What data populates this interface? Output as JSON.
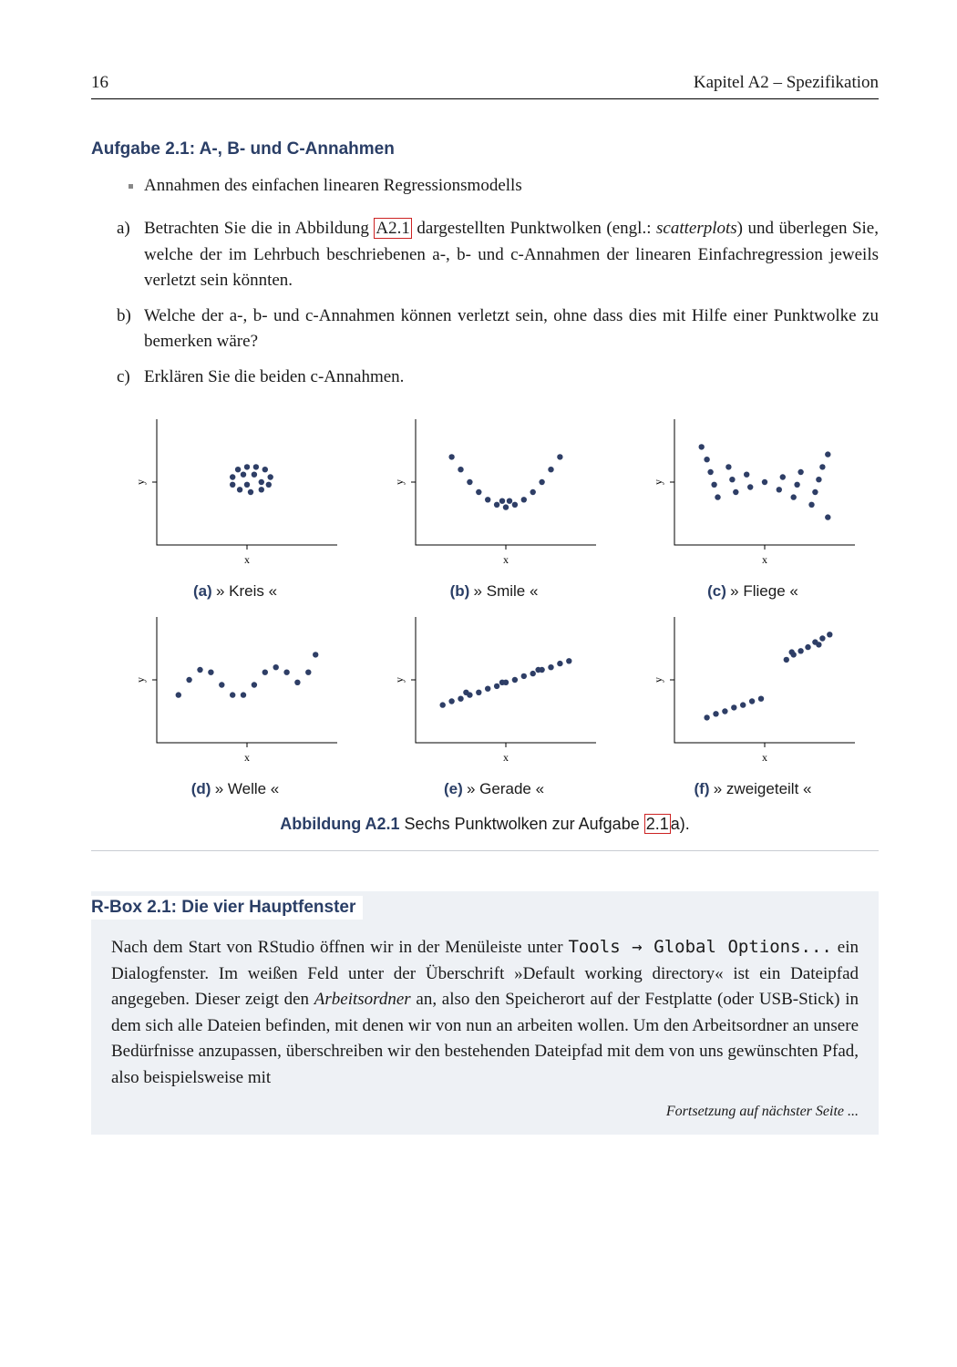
{
  "header": {
    "pageno": "16",
    "chapter": "Kapitel A2 – Spezifikation"
  },
  "aufgabe": {
    "title": "Aufgabe 2.1: A-, B- und C-Annahmen",
    "bullet": "Annahmen des einfachen linearen Regressionsmodells",
    "item_a_before": "Betrachten Sie die in Abbildung ",
    "item_a_link": "A2.1",
    "item_a_mid1": " dargestellten Punktwolken (engl.: ",
    "item_a_ital": "scatterplots",
    "item_a_after": ") und überlegen Sie, welche der im Lehrbuch beschriebenen a-, b- und c-Annahmen der linearen Einfachregression jeweils verletzt sein könnten.",
    "item_b": "Welche der a-, b- und c-Annahmen können verletzt sein, ohne dass dies mit Hilfe einer Punktwolke zu bemerken wäre?",
    "item_c": "Erklären Sie die beiden c-Annahmen."
  },
  "plots": {
    "point_color": "#2e3e66",
    "point_radius": 3.2,
    "axis_color": "#000000",
    "xlabel": "x",
    "ylabel": "y",
    "xlim": [
      0,
      100
    ],
    "ylim": [
      0,
      100
    ],
    "panels": [
      {
        "label": "(a)",
        "name": "» Kreis «",
        "pts": [
          [
            42,
            54
          ],
          [
            45,
            60
          ],
          [
            50,
            62
          ],
          [
            55,
            62
          ],
          [
            60,
            60
          ],
          [
            63,
            54
          ],
          [
            62,
            48
          ],
          [
            58,
            44
          ],
          [
            52,
            42
          ],
          [
            46,
            44
          ],
          [
            42,
            48
          ],
          [
            48,
            56
          ],
          [
            54,
            56
          ],
          [
            58,
            50
          ],
          [
            50,
            48
          ]
        ]
      },
      {
        "label": "(b)",
        "name": "» Smile «",
        "pts": [
          [
            20,
            70
          ],
          [
            25,
            60
          ],
          [
            30,
            50
          ],
          [
            35,
            42
          ],
          [
            40,
            36
          ],
          [
            45,
            32
          ],
          [
            50,
            30
          ],
          [
            55,
            32
          ],
          [
            60,
            36
          ],
          [
            65,
            42
          ],
          [
            70,
            50
          ],
          [
            75,
            60
          ],
          [
            80,
            70
          ],
          [
            48,
            35
          ],
          [
            52,
            35
          ]
        ]
      },
      {
        "label": "(c)",
        "name": "» Fliege «",
        "pts": [
          [
            15,
            78
          ],
          [
            18,
            68
          ],
          [
            20,
            58
          ],
          [
            22,
            48
          ],
          [
            24,
            38
          ],
          [
            30,
            62
          ],
          [
            32,
            52
          ],
          [
            34,
            42
          ],
          [
            40,
            56
          ],
          [
            42,
            46
          ],
          [
            50,
            50
          ],
          [
            58,
            44
          ],
          [
            60,
            54
          ],
          [
            66,
            38
          ],
          [
            68,
            48
          ],
          [
            70,
            58
          ],
          [
            76,
            32
          ],
          [
            78,
            42
          ],
          [
            80,
            52
          ],
          [
            82,
            62
          ],
          [
            85,
            22
          ],
          [
            85,
            72
          ]
        ]
      },
      {
        "label": "(d)",
        "name": "» Welle «",
        "pts": [
          [
            12,
            38
          ],
          [
            18,
            50
          ],
          [
            24,
            58
          ],
          [
            30,
            56
          ],
          [
            36,
            46
          ],
          [
            42,
            38
          ],
          [
            48,
            38
          ],
          [
            54,
            46
          ],
          [
            60,
            56
          ],
          [
            66,
            60
          ],
          [
            72,
            56
          ],
          [
            78,
            48
          ],
          [
            84,
            56
          ],
          [
            88,
            70
          ]
        ]
      },
      {
        "label": "(e)",
        "name": "» Gerade «",
        "pts": [
          [
            15,
            30
          ],
          [
            20,
            33
          ],
          [
            25,
            35
          ],
          [
            30,
            38
          ],
          [
            35,
            40
          ],
          [
            40,
            43
          ],
          [
            45,
            45
          ],
          [
            50,
            48
          ],
          [
            55,
            50
          ],
          [
            60,
            53
          ],
          [
            65,
            55
          ],
          [
            70,
            58
          ],
          [
            75,
            60
          ],
          [
            80,
            63
          ],
          [
            85,
            65
          ],
          [
            28,
            40
          ],
          [
            48,
            48
          ],
          [
            68,
            58
          ]
        ]
      },
      {
        "label": "(f)",
        "name": "» zweigeteilt «",
        "pts": [
          [
            18,
            20
          ],
          [
            23,
            23
          ],
          [
            28,
            25
          ],
          [
            33,
            28
          ],
          [
            38,
            30
          ],
          [
            43,
            33
          ],
          [
            48,
            35
          ],
          [
            62,
            66
          ],
          [
            66,
            70
          ],
          [
            70,
            73
          ],
          [
            74,
            76
          ],
          [
            78,
            80
          ],
          [
            82,
            83
          ],
          [
            86,
            86
          ],
          [
            65,
            72
          ],
          [
            80,
            78
          ]
        ]
      }
    ]
  },
  "figcaption": {
    "label": "Abbildung A2.1",
    "before": " Sechs Punktwolken zur Aufgabe ",
    "link": "2.1",
    "after": "a)."
  },
  "rbox": {
    "title": "R-Box 2.1: Die vier Hauptfenster",
    "p1a": "Nach dem Start von RStudio öffnen wir in der Menüleiste unter ",
    "m1": "Tools",
    "arrow": " → ",
    "m2": "Global Options...",
    "p1b": " ein Dialogfenster. Im weißen Feld unter der Überschrift »Default working directory« ist ein Dateipfad angegeben. Dieser zeigt den ",
    "ital": "Arbeitsordner",
    "p1c": " an, also den Speicherort auf der Festplatte (oder USB-Stick) in dem sich alle Dateien befinden, mit denen wir von nun an arbeiten wollen. Um den Arbeitsordner an unsere Bedürfnisse anzupassen, überschreiben wir den bestehenden Dateipfad mit dem von uns gewünschten Pfad, also beispielsweise mit"
  },
  "continue": "Fortsetzung auf nächster Seite ..."
}
